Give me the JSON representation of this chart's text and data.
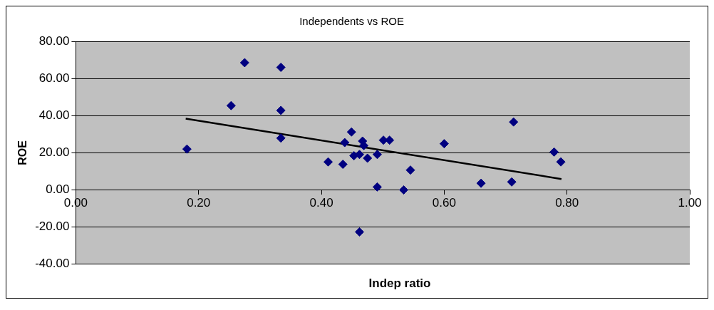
{
  "chart_data": {
    "type": "scatter",
    "title": "Independents vs ROE",
    "xlabel": "Indep ratio",
    "ylabel": "ROE",
    "series": [
      {
        "color": "#000080",
        "marker": "diamond",
        "x": [
          0.181,
          0.253,
          0.275,
          0.334,
          0.334,
          0.334,
          0.449,
          0.438,
          0.467,
          0.469,
          0.501,
          0.511,
          0.6,
          0.453,
          0.462,
          0.475,
          0.491,
          0.411,
          0.435,
          0.545,
          0.491,
          0.534,
          0.462,
          0.66,
          0.71,
          0.713,
          0.779,
          0.79
        ],
        "values": [
          22.0,
          45.4,
          68.5,
          66.0,
          42.8,
          27.9,
          31.2,
          25.5,
          26.3,
          23.9,
          26.8,
          26.8,
          24.9,
          18.4,
          19.1,
          17.1,
          19.1,
          15.1,
          13.8,
          10.7,
          1.6,
          0,
          -22.6,
          3.6,
          4.3,
          36.6,
          20.4,
          15.1
        ]
      },
      {
        "type": "line",
        "color": "#000000",
        "marker": "none",
        "x": [
          0.179,
          0.791
        ],
        "values": [
          38.4,
          5.9
        ]
      }
    ],
    "xlim": [
      0,
      1
    ],
    "xticks": [
      {
        "value": 0,
        "label": "0.00"
      },
      {
        "value": 0.2,
        "label": "0.20"
      },
      {
        "value": 0.4,
        "label": "0.40"
      },
      {
        "value": 0.6,
        "label": "0.60"
      },
      {
        "value": 0.8,
        "label": "0.80"
      },
      {
        "value": 1,
        "label": "1.00"
      }
    ],
    "ylim": [
      -40,
      80
    ],
    "yticks": [
      {
        "value": -40,
        "label": "-40.00"
      },
      {
        "value": -20,
        "label": "-20.00"
      },
      {
        "value": 0,
        "label": "0.00"
      },
      {
        "value": 20,
        "label": "20.00"
      },
      {
        "value": 40,
        "label": "40.00"
      },
      {
        "value": 60,
        "label": "60.00"
      },
      {
        "value": 80,
        "label": "80.00"
      }
    ],
    "grid": "y",
    "legend": false
  }
}
